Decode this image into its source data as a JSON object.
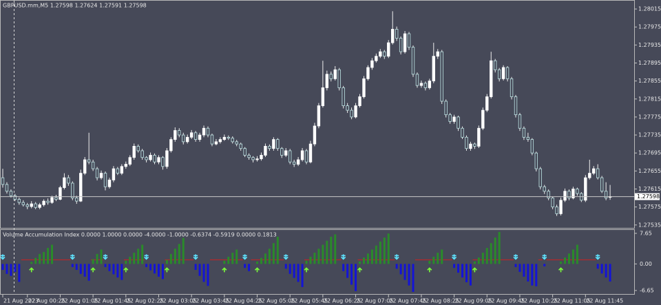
{
  "chart_data": [
    {
      "type": "candlestick",
      "title": "GBPUSD.mm,M5  1.27598 1.27624 1.27591 1.27598",
      "categories": [
        "21 Aug 2023",
        null,
        null,
        null,
        null,
        null,
        "22 Aug 00:25",
        null,
        null,
        null,
        null,
        null,
        null,
        null,
        "22 Aug 01:05",
        null,
        null,
        null,
        null,
        null,
        null,
        null,
        "22 Aug 01:45",
        null,
        null,
        null,
        null,
        null,
        null,
        null,
        "22 Aug 02:25",
        null,
        null,
        null,
        null,
        null,
        null,
        null,
        "22 Aug 03:05",
        null,
        null,
        null,
        null,
        null,
        null,
        null,
        "22 Aug 03:45",
        null,
        null,
        null,
        null,
        null,
        null,
        null,
        "22 Aug 04:25",
        null,
        null,
        null,
        null,
        null,
        null,
        null,
        "22 Aug 05:05",
        null,
        null,
        null,
        null,
        null,
        null,
        null,
        "22 Aug 05:45",
        null,
        null,
        null,
        null,
        null,
        null,
        null,
        "22 Aug 06:25",
        null,
        null,
        null,
        null,
        null,
        null,
        null,
        "22 Aug 07:05",
        null,
        null,
        null,
        null,
        null,
        null,
        null,
        "22 Aug 07:45",
        null,
        null,
        null,
        null,
        null,
        null,
        null,
        "22 Aug 08:25",
        null,
        null,
        null,
        null,
        null,
        null,
        null,
        "22 Aug 09:05",
        null,
        null,
        null,
        null,
        null,
        null,
        null,
        "22 Aug 09:45",
        null,
        null,
        null,
        null,
        null,
        null,
        null,
        "22 Aug 10:25",
        null,
        null,
        null,
        null,
        null,
        null,
        null,
        "22 Aug 11:05",
        null,
        null,
        null,
        null,
        null,
        null,
        null,
        "22 Aug 11:45",
        null,
        null,
        null,
        null,
        null,
        null
      ],
      "ohlc": [
        [
          1.2764,
          1.2766,
          1.27618,
          1.27625
        ],
        [
          1.27625,
          1.2763,
          1.27605,
          1.2761
        ],
        [
          1.2761,
          1.27614,
          1.27596,
          1.276
        ],
        [
          1.276,
          1.27604,
          1.27588,
          1.27592
        ],
        [
          1.27592,
          1.27596,
          1.2758,
          1.27585
        ],
        [
          1.27585,
          1.2759,
          1.27576,
          1.2758
        ],
        [
          1.2758,
          1.27584,
          1.2757,
          1.27576
        ],
        [
          1.27576,
          1.27588,
          1.27572,
          1.27582
        ],
        [
          1.27582,
          1.27586,
          1.2757,
          1.27574
        ],
        [
          1.27574,
          1.27584,
          1.2757,
          1.2758
        ],
        [
          1.2758,
          1.27592,
          1.27576,
          1.27588
        ],
        [
          1.27588,
          1.27594,
          1.2758,
          1.27585
        ],
        [
          1.27585,
          1.276,
          1.27582,
          1.27596
        ],
        [
          1.27596,
          1.27602,
          1.27588,
          1.27592
        ],
        [
          1.27592,
          1.27622,
          1.2759,
          1.27618
        ],
        [
          1.27618,
          1.2765,
          1.27614,
          1.2764
        ],
        [
          1.2764,
          1.27646,
          1.27622,
          1.27628
        ],
        [
          1.27628,
          1.27632,
          1.2759,
          1.27595
        ],
        [
          1.27595,
          1.276,
          1.27582,
          1.27588
        ],
        [
          1.27588,
          1.27658,
          1.27586,
          1.2765
        ],
        [
          1.2765,
          1.27686,
          1.27646,
          1.2768
        ],
        [
          1.2768,
          1.2774,
          1.2767,
          1.27675
        ],
        [
          1.27675,
          1.2768,
          1.27655,
          1.2766
        ],
        [
          1.2766,
          1.27664,
          1.27634,
          1.2764
        ],
        [
          1.2764,
          1.27656,
          1.27636,
          1.2765
        ],
        [
          1.2765,
          1.27654,
          1.27612,
          1.2762
        ],
        [
          1.2762,
          1.2764,
          1.27616,
          1.27635
        ],
        [
          1.27635,
          1.27666,
          1.2763,
          1.2766
        ],
        [
          1.2766,
          1.27664,
          1.27646,
          1.2765
        ],
        [
          1.2765,
          1.2767,
          1.27646,
          1.27665
        ],
        [
          1.27665,
          1.27676,
          1.2766,
          1.2767
        ],
        [
          1.2767,
          1.2769,
          1.27666,
          1.27685
        ],
        [
          1.27685,
          1.27716,
          1.2768,
          1.2771
        ],
        [
          1.2771,
          1.27714,
          1.27696,
          1.277
        ],
        [
          1.277,
          1.27704,
          1.2768,
          1.27685
        ],
        [
          1.27685,
          1.27688,
          1.27674,
          1.2768
        ],
        [
          1.2768,
          1.27696,
          1.27676,
          1.2769
        ],
        [
          1.2769,
          1.27694,
          1.2767,
          1.27675
        ],
        [
          1.27675,
          1.2769,
          1.2767,
          1.27685
        ],
        [
          1.27685,
          1.27688,
          1.27658,
          1.27665
        ],
        [
          1.27665,
          1.27706,
          1.2766,
          1.277
        ],
        [
          1.277,
          1.2773,
          1.27696,
          1.27725
        ],
        [
          1.27725,
          1.27752,
          1.2772,
          1.27745
        ],
        [
          1.27745,
          1.2775,
          1.2773,
          1.27735
        ],
        [
          1.27735,
          1.2774,
          1.27714,
          1.2772
        ],
        [
          1.2772,
          1.27736,
          1.27716,
          1.2773
        ],
        [
          1.2773,
          1.27746,
          1.27726,
          1.2774
        ],
        [
          1.2774,
          1.27744,
          1.2772,
          1.27725
        ],
        [
          1.27725,
          1.2774,
          1.2772,
          1.27735
        ],
        [
          1.27735,
          1.27756,
          1.2773,
          1.2775
        ],
        [
          1.2775,
          1.27754,
          1.2773,
          1.27735
        ],
        [
          1.27735,
          1.27738,
          1.2771,
          1.27715
        ],
        [
          1.27715,
          1.27726,
          1.27712,
          1.2772
        ],
        [
          1.2772,
          1.2773,
          1.27716,
          1.27725
        ],
        [
          1.27725,
          1.27736,
          1.27722,
          1.2773
        ],
        [
          1.2773,
          1.27734,
          1.27724,
          1.27728
        ],
        [
          1.27728,
          1.27732,
          1.27716,
          1.2772
        ],
        [
          1.2772,
          1.27724,
          1.2771,
          1.27715
        ],
        [
          1.27715,
          1.27718,
          1.277,
          1.27705
        ],
        [
          1.27705,
          1.27708,
          1.27686,
          1.2769
        ],
        [
          1.2769,
          1.27694,
          1.2768,
          1.27685
        ],
        [
          1.27685,
          1.27688,
          1.27674,
          1.2768
        ],
        [
          1.2768,
          1.27688,
          1.27676,
          1.27682
        ],
        [
          1.27682,
          1.27696,
          1.27678,
          1.2769
        ],
        [
          1.2769,
          1.27716,
          1.27686,
          1.2771
        ],
        [
          1.2771,
          1.27714,
          1.277,
          1.27705
        ],
        [
          1.27705,
          1.2773,
          1.277,
          1.27725
        ],
        [
          1.27725,
          1.27728,
          1.277,
          1.27705
        ],
        [
          1.27705,
          1.27708,
          1.27684,
          1.2769
        ],
        [
          1.2769,
          1.27706,
          1.27686,
          1.277
        ],
        [
          1.277,
          1.27704,
          1.2767,
          1.27675
        ],
        [
          1.27675,
          1.2768,
          1.27664,
          1.2767
        ],
        [
          1.2767,
          1.27686,
          1.27666,
          1.2768
        ],
        [
          1.2768,
          1.27706,
          1.27676,
          1.277
        ],
        [
          1.277,
          1.27704,
          1.2767,
          1.27675
        ],
        [
          1.27675,
          1.27722,
          1.27672,
          1.27715
        ],
        [
          1.27715,
          1.27762,
          1.2771,
          1.27755
        ],
        [
          1.27755,
          1.27806,
          1.2775,
          1.278
        ],
        [
          1.278,
          1.279,
          1.27796,
          1.2784
        ],
        [
          1.2784,
          1.27878,
          1.27834,
          1.2787
        ],
        [
          1.2787,
          1.27876,
          1.27854,
          1.2786
        ],
        [
          1.2786,
          1.27888,
          1.27856,
          1.2788
        ],
        [
          1.2788,
          1.27884,
          1.27834,
          1.2784
        ],
        [
          1.2784,
          1.27844,
          1.27794,
          1.278
        ],
        [
          1.278,
          1.27806,
          1.27784,
          1.2779
        ],
        [
          1.2779,
          1.27796,
          1.2777,
          1.27775
        ],
        [
          1.27775,
          1.27806,
          1.27772,
          1.278
        ],
        [
          1.278,
          1.27826,
          1.27796,
          1.2782
        ],
        [
          1.2782,
          1.27866,
          1.27816,
          1.2786
        ],
        [
          1.2786,
          1.2789,
          1.27856,
          1.27885
        ],
        [
          1.27885,
          1.27906,
          1.2788,
          1.279
        ],
        [
          1.279,
          1.27916,
          1.27896,
          1.2791
        ],
        [
          1.2791,
          1.27926,
          1.27906,
          1.2792
        ],
        [
          1.2792,
          1.27924,
          1.27904,
          1.2791
        ],
        [
          1.2791,
          1.27946,
          1.27906,
          1.2794
        ],
        [
          1.2794,
          1.2801,
          1.27936,
          1.2797
        ],
        [
          1.2797,
          1.27976,
          1.27944,
          1.2795
        ],
        [
          1.2795,
          1.27954,
          1.27914,
          1.2792
        ],
        [
          1.2792,
          1.27966,
          1.27916,
          1.2796
        ],
        [
          1.2796,
          1.27964,
          1.27924,
          1.2793
        ],
        [
          1.2793,
          1.27934,
          1.27864,
          1.2787
        ],
        [
          1.2787,
          1.27874,
          1.2784,
          1.27845
        ],
        [
          1.27845,
          1.27856,
          1.2784,
          1.2785
        ],
        [
          1.2785,
          1.27854,
          1.27834,
          1.2784
        ],
        [
          1.2784,
          1.2786,
          1.27836,
          1.27855
        ],
        [
          1.27855,
          1.2794,
          1.2785,
          1.2791
        ],
        [
          1.2791,
          1.27926,
          1.27904,
          1.2792
        ],
        [
          1.2792,
          1.27924,
          1.27804,
          1.2781
        ],
        [
          1.2781,
          1.27814,
          1.27774,
          1.2778
        ],
        [
          1.2778,
          1.27784,
          1.2776,
          1.27765
        ],
        [
          1.27765,
          1.2778,
          1.2776,
          1.27775
        ],
        [
          1.27775,
          1.27778,
          1.27744,
          1.2775
        ],
        [
          1.2775,
          1.27754,
          1.27726,
          1.2773
        ],
        [
          1.2773,
          1.27734,
          1.277,
          1.27705
        ],
        [
          1.27705,
          1.2772,
          1.277,
          1.27715
        ],
        [
          1.27715,
          1.27718,
          1.27704,
          1.2771
        ],
        [
          1.2771,
          1.27756,
          1.27706,
          1.2775
        ],
        [
          1.2775,
          1.27796,
          1.27746,
          1.2779
        ],
        [
          1.2779,
          1.27826,
          1.27786,
          1.2782
        ],
        [
          1.2782,
          1.2792,
          1.27816,
          1.279
        ],
        [
          1.279,
          1.27904,
          1.27874,
          1.2788
        ],
        [
          1.2788,
          1.27884,
          1.27854,
          1.2786
        ],
        [
          1.2786,
          1.2789,
          1.27856,
          1.27885
        ],
        [
          1.27885,
          1.27888,
          1.27854,
          1.2786
        ],
        [
          1.2786,
          1.27864,
          1.27814,
          1.2782
        ],
        [
          1.2782,
          1.27824,
          1.27774,
          1.2778
        ],
        [
          1.2778,
          1.27784,
          1.27744,
          1.2775
        ],
        [
          1.2775,
          1.27754,
          1.27724,
          1.2773
        ],
        [
          1.2773,
          1.2774,
          1.2772,
          1.27725
        ],
        [
          1.27725,
          1.27728,
          1.2769,
          1.27695
        ],
        [
          1.27695,
          1.27698,
          1.27654,
          1.2766
        ],
        [
          1.2766,
          1.27664,
          1.27614,
          1.2762
        ],
        [
          1.2762,
          1.27624,
          1.27604,
          1.2761
        ],
        [
          1.2761,
          1.27614,
          1.2759,
          1.27595
        ],
        [
          1.27595,
          1.27598,
          1.2757,
          1.27575
        ],
        [
          1.27575,
          1.2758,
          1.27555,
          1.2756
        ],
        [
          1.2756,
          1.27596,
          1.27556,
          1.2759
        ],
        [
          1.2759,
          1.27616,
          1.27586,
          1.2761
        ],
        [
          1.2761,
          1.27614,
          1.2759,
          1.27595
        ],
        [
          1.27595,
          1.2762,
          1.27592,
          1.27615
        ],
        [
          1.27615,
          1.27618,
          1.276,
          1.27605
        ],
        [
          1.27605,
          1.27608,
          1.27586,
          1.2759
        ],
        [
          1.2759,
          1.27646,
          1.27586,
          1.2764
        ],
        [
          1.2764,
          1.2768,
          1.27636,
          1.2765
        ],
        [
          1.2765,
          1.27666,
          1.27646,
          1.2766
        ],
        [
          1.2766,
          1.2767,
          1.27636,
          1.2764
        ],
        [
          1.2764,
          1.27644,
          1.27606,
          1.2761
        ],
        [
          1.2761,
          1.2763,
          1.2759,
          1.27595
        ],
        [
          1.27598,
          1.27624,
          1.27591,
          1.27598
        ]
      ],
      "ylim": [
        1.27527,
        1.28035
      ],
      "yticks": [
        1.28015,
        1.27975,
        1.27935,
        1.27895,
        1.27855,
        1.27815,
        1.27775,
        1.27735,
        1.27695,
        1.27655,
        1.27615,
        1.27575,
        1.27535
      ],
      "current_price": 1.27598,
      "colors": {
        "up": "#ffffff",
        "down": "#474b5a",
        "down_outline": "#bfe6e6",
        "wick": "#f0f0f0",
        "price_line": "#c8c8c8"
      }
    },
    {
      "type": "histogram",
      "title": "Volume Accumulation Index 0.0000 1.0000 0.0000 -4.0000 -1.0000 -0.6374 -0.5919 0.0000 0.1813",
      "values": [
        -1.5,
        -2.5,
        -3.0,
        -2.0,
        -4.5,
        0,
        0,
        0.5,
        1.5,
        2.5,
        3.0,
        4.0,
        4.8,
        0,
        0,
        0,
        0,
        -0.8,
        -1.5,
        -2.5,
        -3.2,
        -4.2,
        1.2,
        2.5,
        3.6,
        -0.8,
        -1.8,
        -2.6,
        -3.4,
        -4.0,
        0.8,
        1.8,
        2.8,
        3.8,
        4.8,
        -0.8,
        -1.6,
        -2.4,
        -3.2,
        -3.8,
        1.0,
        2.5,
        3.8,
        5.0,
        6.5,
        0,
        0,
        -1.5,
        -3.0,
        -4.5,
        -5.5,
        0,
        0,
        0,
        0.8,
        1.8,
        2.8,
        3.6,
        0,
        -1.0,
        -1.8,
        0,
        0.6,
        1.5,
        2.6,
        3.8,
        5.2,
        6.8,
        0,
        -1.2,
        -2.5,
        -3.5,
        -4.5,
        -5.8,
        0.8,
        1.8,
        2.8,
        3.8,
        4.8,
        5.8,
        6.8,
        7.4,
        0,
        -1.8,
        -3.5,
        -5.2,
        -6.8,
        0.6,
        1.6,
        2.6,
        3.6,
        4.6,
        5.6,
        6.6,
        7.6,
        0,
        -1.2,
        -2.6,
        -4.0,
        -5.4,
        -7.0,
        0,
        0,
        0,
        0.8,
        1.8,
        2.8,
        3.6,
        0,
        0,
        -1.0,
        -2.2,
        -3.4,
        -4.6,
        -5.4,
        0.6,
        1.6,
        2.8,
        4.0,
        5.2,
        6.6,
        8.0,
        0,
        0,
        0,
        -0.8,
        -2.0,
        -3.2,
        -4.4,
        -5.4,
        -5.6,
        0,
        -0.6,
        0,
        0,
        0,
        0.6,
        1.6,
        2.6,
        3.6,
        4.8,
        0,
        0,
        0,
        0,
        -1.2,
        -2.4,
        -3.4,
        -4.4
      ],
      "ylim": [
        -7.7,
        8.5
      ],
      "yticks": [
        7.65,
        {
          "value": 0,
          "label": "0.00"
        },
        -6.65
      ],
      "colors": {
        "positive": "#2a8a2a",
        "negative": "#1414d6",
        "buy_arrow": "#7cff3a",
        "sell_arrow": "#5fe3ff",
        "line": "#d02020"
      }
    }
  ]
}
